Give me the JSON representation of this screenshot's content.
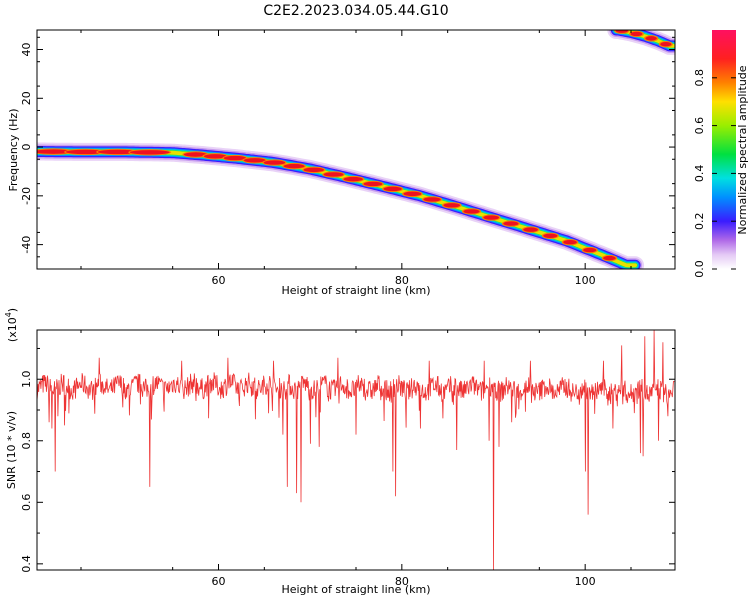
{
  "page": {
    "title": "C2E2.2023.034.05.44.G10"
  },
  "chart_data": [
    {
      "type": "heatmap",
      "xlabel": "Height of straight line (km)",
      "ylabel": "Frequency (Hz)",
      "xlim": [
        40.2,
        109.8
      ],
      "ylim": [
        -50,
        48
      ],
      "xticks": [
        60,
        80,
        100
      ],
      "yticks": [
        -40,
        -20,
        0,
        20,
        40
      ],
      "ridge": {
        "description_points_x": [
          40.2,
          45,
          50,
          55,
          58,
          62,
          66,
          70,
          74,
          78,
          82,
          86,
          90,
          94,
          98,
          102,
          104.5
        ],
        "description_points_y": [
          -1.8,
          -2,
          -2,
          -2.3,
          -3.2,
          -4.6,
          -6.3,
          -9,
          -12.5,
          -16.2,
          -20,
          -24.5,
          -29.2,
          -33.8,
          -38.5,
          -44.5,
          -48.5
        ]
      },
      "ridge2": {
        "description_points_x": [
          103.6,
          105,
          106.5,
          108,
          109.2
        ],
        "description_points_y": [
          48,
          47,
          45.5,
          43.5,
          41.5
        ]
      },
      "colorbar": {
        "label": "Normalized spectral amplitude",
        "ticks": [
          0.0,
          0.2,
          0.4,
          0.6,
          0.8
        ],
        "range": [
          0,
          1
        ]
      }
    },
    {
      "type": "line",
      "xlabel": "Height of straight line (km)",
      "ylabel": "SNR (10 * v/v)",
      "scale_label": "(x10",
      "scale_exp": "4",
      "scale_close": ")",
      "xlim": [
        40.2,
        109.8
      ],
      "ylim": [
        0.38,
        1.16
      ],
      "xticks": [
        60,
        80,
        100
      ],
      "yticks": [
        0.4,
        0.6,
        0.8,
        1.0
      ],
      "ytick_labels": [
        "0.4",
        "0.6",
        "0.8",
        "1.0"
      ],
      "series": [
        {
          "color": "#ee3333",
          "baseline": [
            [
              40.2,
              0.975
            ],
            [
              50,
              0.975
            ],
            [
              60,
              0.98
            ],
            [
              70,
              0.975
            ],
            [
              80,
              0.97
            ],
            [
              90,
              0.97
            ],
            [
              100,
              0.965
            ],
            [
              105,
              0.96
            ],
            [
              109.8,
              0.96
            ]
          ],
          "dips": [
            [
              41.5,
              0.86
            ],
            [
              41.8,
              0.84
            ],
            [
              42.2,
              0.7
            ],
            [
              42.5,
              0.88
            ],
            [
              43.2,
              0.85
            ],
            [
              47,
              0.88
            ],
            [
              52.5,
              0.65
            ],
            [
              56,
              0.88
            ],
            [
              64,
              0.87
            ],
            [
              67,
              0.82
            ],
            [
              67.5,
              0.65
            ],
            [
              68.5,
              0.63
            ],
            [
              69,
              0.6
            ],
            [
              70,
              0.79
            ],
            [
              71,
              0.78
            ],
            [
              75,
              0.82
            ],
            [
              79,
              0.7
            ],
            [
              79.3,
              0.62
            ],
            [
              82,
              0.84
            ],
            [
              86,
              0.77
            ],
            [
              89.5,
              0.8
            ],
            [
              90,
              0.38
            ],
            [
              90.6,
              0.78
            ],
            [
              92,
              0.86
            ],
            [
              94,
              0.85
            ],
            [
              100,
              0.7
            ],
            [
              100.3,
              0.56
            ],
            [
              103,
              0.84
            ],
            [
              106,
              0.76
            ],
            [
              106.3,
              0.75
            ],
            [
              108,
              0.8
            ],
            [
              109,
              0.88
            ]
          ],
          "peaks": [
            [
              47,
              1.07
            ],
            [
              56,
              1.06
            ],
            [
              61,
              1.07
            ],
            [
              66,
              1.06
            ],
            [
              73,
              1.07
            ],
            [
              83,
              1.06
            ],
            [
              89,
              1.06
            ],
            [
              94,
              1.06
            ],
            [
              102,
              1.06
            ],
            [
              104,
              1.11
            ],
            [
              106.5,
              1.14
            ],
            [
              107.5,
              1.16
            ],
            [
              108.5,
              1.12
            ]
          ]
        }
      ]
    }
  ]
}
